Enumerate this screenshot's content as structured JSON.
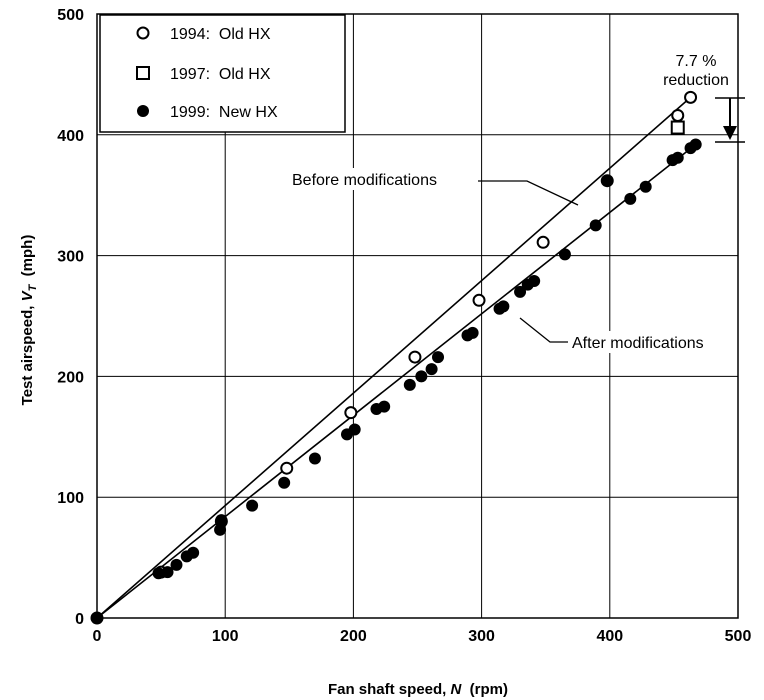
{
  "chart_data": {
    "type": "scatter",
    "title": "",
    "xlabel": {
      "text": "Fan shaft speed, ",
      "var": "N",
      "unit": "  (rpm)"
    },
    "ylabel": {
      "text": "Test airspeed, ",
      "var": "V",
      "sub": "T",
      "unit": "  (mph)"
    },
    "xlim": [
      0,
      500
    ],
    "ylim": [
      0,
      500
    ],
    "xticks": [
      0,
      100,
      200,
      300,
      400,
      500
    ],
    "yticks": [
      0,
      100,
      200,
      300,
      400,
      500
    ],
    "grid": true,
    "legend_position": "top-left",
    "series": [
      {
        "name": "1994:  Old HX",
        "marker": "circle-open",
        "points": [
          [
            0,
            0
          ],
          [
            50,
            38
          ],
          [
            97,
            80
          ],
          [
            148,
            124
          ],
          [
            198,
            170
          ],
          [
            248,
            216
          ],
          [
            298,
            263
          ],
          [
            348,
            311
          ],
          [
            398,
            362
          ],
          [
            453,
            416
          ],
          [
            463,
            431
          ]
        ]
      },
      {
        "name": "1997:  Old HX",
        "marker": "square-open",
        "points": [
          [
            453,
            406
          ]
        ]
      },
      {
        "name": "1999:  New HX",
        "marker": "circle-filled",
        "points": [
          [
            0,
            0
          ],
          [
            48,
            37
          ],
          [
            55,
            38
          ],
          [
            62,
            44
          ],
          [
            70,
            51
          ],
          [
            75,
            54
          ],
          [
            96,
            73
          ],
          [
            97,
            81
          ],
          [
            121,
            93
          ],
          [
            146,
            112
          ],
          [
            170,
            132
          ],
          [
            195,
            152
          ],
          [
            201,
            156
          ],
          [
            218,
            173
          ],
          [
            224,
            175
          ],
          [
            244,
            193
          ],
          [
            253,
            200
          ],
          [
            261,
            206
          ],
          [
            266,
            216
          ],
          [
            289,
            234
          ],
          [
            293,
            236
          ],
          [
            314,
            256
          ],
          [
            317,
            258
          ],
          [
            330,
            270
          ],
          [
            336,
            276
          ],
          [
            341,
            279
          ],
          [
            365,
            301
          ],
          [
            389,
            325
          ],
          [
            398,
            362
          ],
          [
            416,
            347
          ],
          [
            428,
            357
          ],
          [
            449,
            379
          ],
          [
            453,
            381
          ],
          [
            463,
            389
          ],
          [
            467,
            392
          ]
        ]
      }
    ],
    "lines": [
      {
        "label": "Before modifications",
        "points": [
          [
            0,
            0
          ],
          [
            463,
            431
          ]
        ]
      },
      {
        "label": "After modifications",
        "points": [
          [
            0,
            0
          ],
          [
            467,
            392
          ]
        ]
      }
    ],
    "annotations": {
      "reduction_value": "7.7 %",
      "reduction_text": "reduction",
      "before_label": "Before modifications",
      "after_label": "After modifications"
    }
  }
}
